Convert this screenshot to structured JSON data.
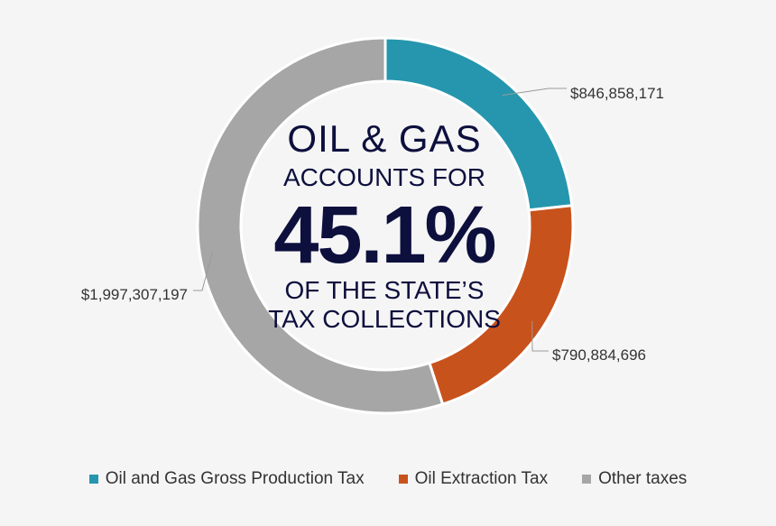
{
  "chart_data": {
    "type": "pie",
    "categories": [
      "Oil and Gas Gross Production Tax",
      "Oil Extraction Tax",
      "Other taxes"
    ],
    "values": [
      846858171,
      790884696,
      1997307197
    ],
    "data_labels": [
      "$846,858,171",
      "$790,884,696",
      "$1,997,307,197"
    ],
    "colors": [
      "#2596ae",
      "#c8521c",
      "#a6a6a6"
    ],
    "donut": true,
    "legend_position": "bottom",
    "center_text": {
      "line1": "OIL & GAS",
      "line2": "ACCOUNTS FOR",
      "percent": "45.1%",
      "line4": "OF THE STATE’S",
      "line5": "TAX COLLECTIONS"
    }
  }
}
